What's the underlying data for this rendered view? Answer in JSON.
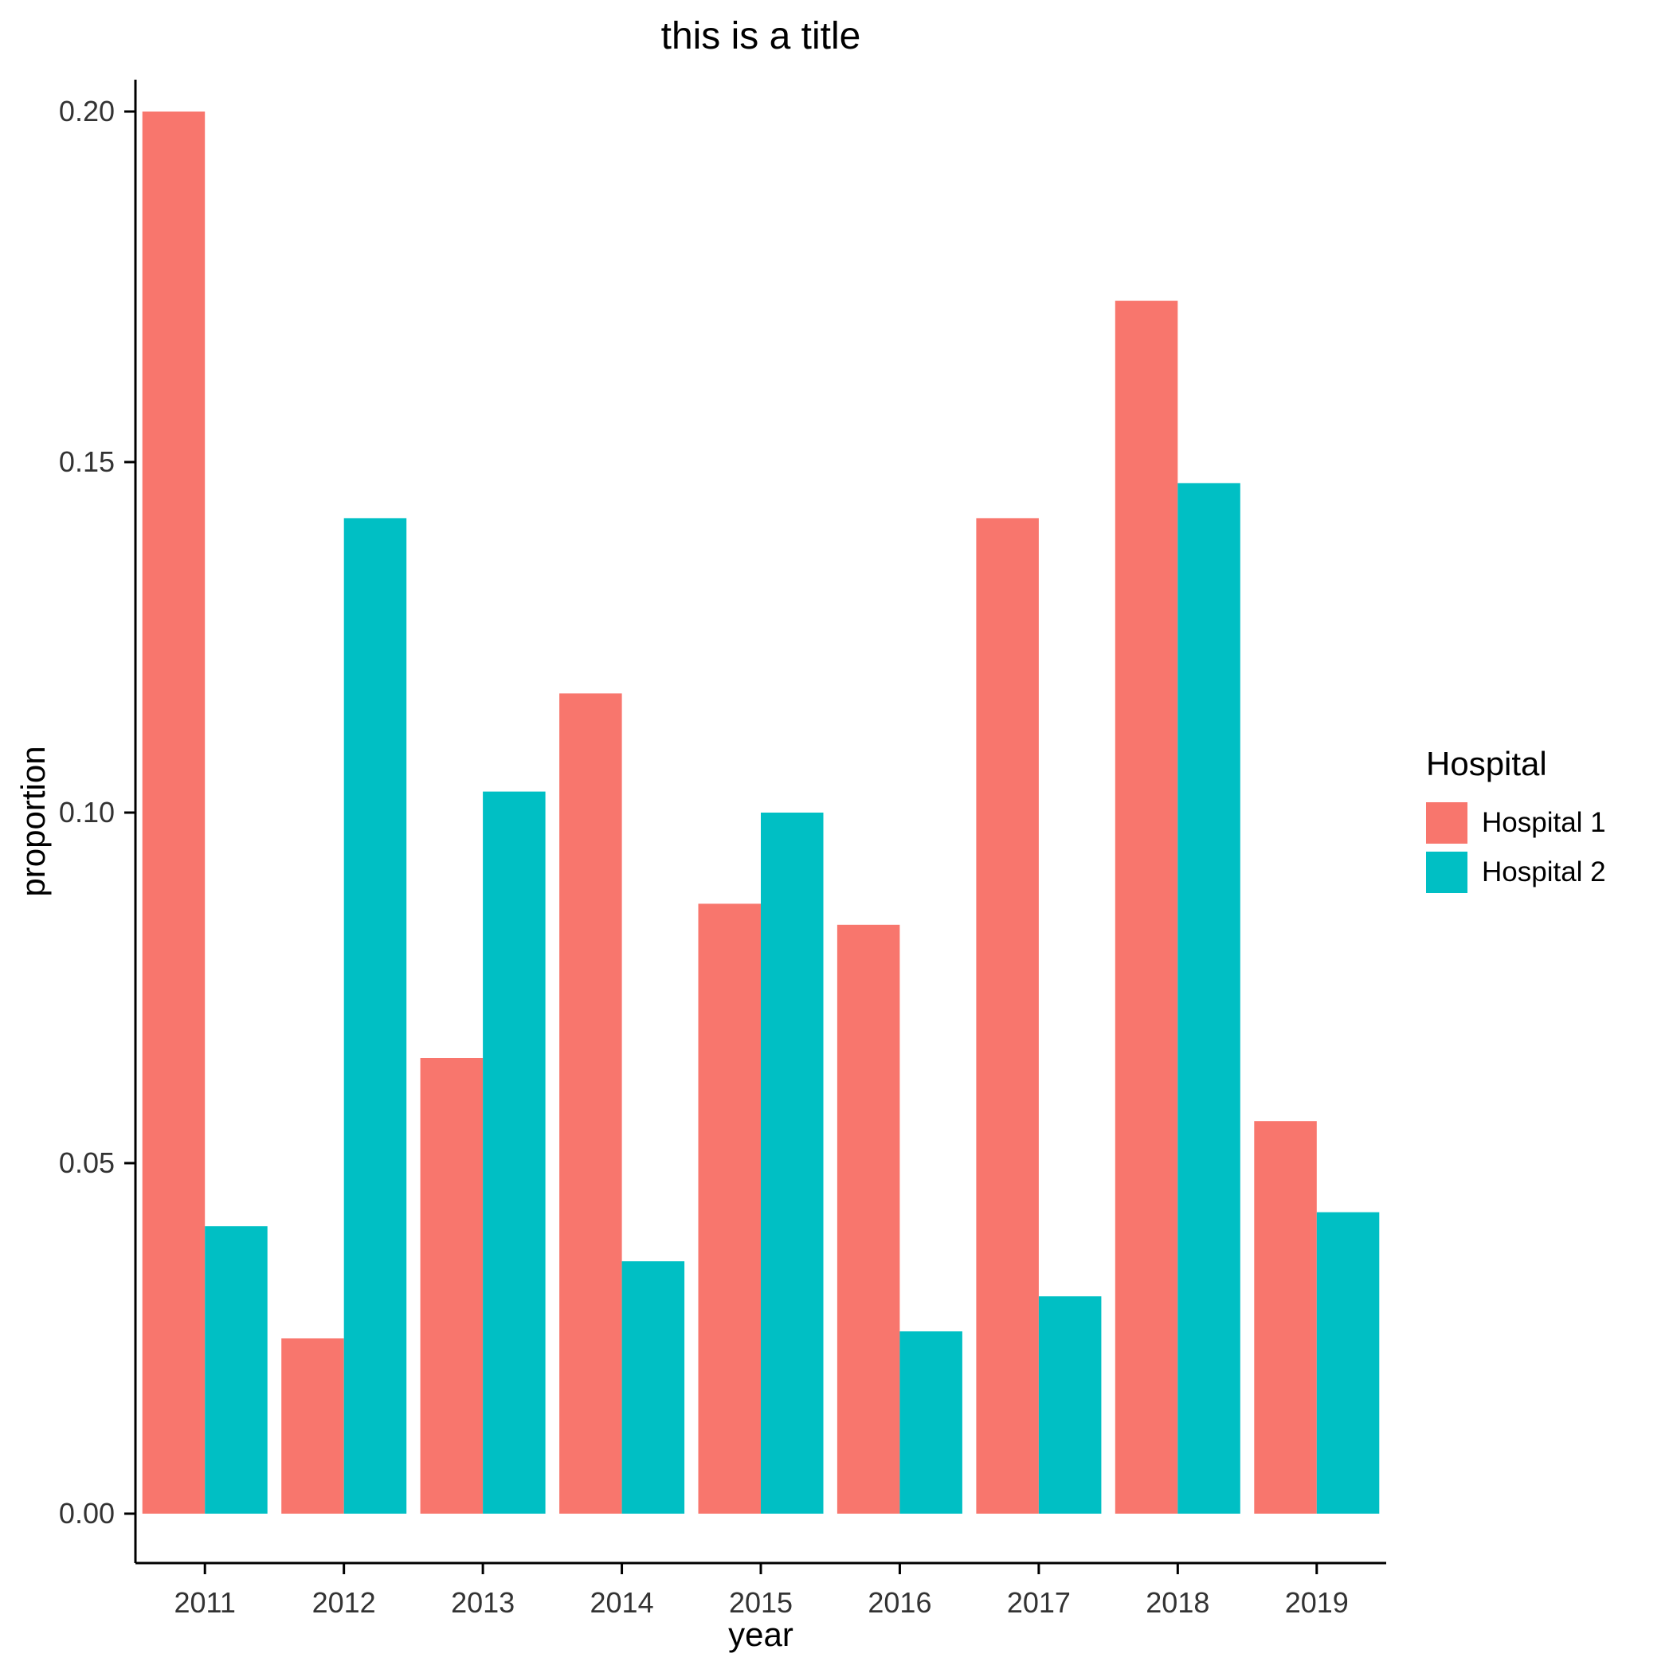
{
  "chart_data": {
    "type": "bar",
    "title": "this is a title",
    "xlabel": "year",
    "ylabel": "proportion",
    "categories": [
      "2011",
      "2012",
      "2013",
      "2014",
      "2015",
      "2016",
      "2017",
      "2018",
      "2019"
    ],
    "series": [
      {
        "name": "Hospital 1",
        "color": "#F8766D",
        "values": [
          0.2,
          0.025,
          0.065,
          0.117,
          0.087,
          0.084,
          0.142,
          0.173,
          0.056
        ]
      },
      {
        "name": "Hospital 2",
        "color": "#00BFC4",
        "values": [
          0.041,
          0.142,
          0.103,
          0.036,
          0.1,
          0.026,
          0.031,
          0.147,
          0.043
        ]
      }
    ],
    "ylim": [
      0,
      0.21
    ],
    "yticks": [
      0,
      0.05,
      0.1,
      0.15,
      0.2
    ],
    "ytick_labels": [
      "0.00",
      "0.05",
      "0.10",
      "0.15",
      "0.20"
    ],
    "legend": {
      "title": "Hospital",
      "position": "right"
    },
    "grid": false,
    "bar_style": "dodged",
    "axis_color": "#000000",
    "tick_label_color": "#333333"
  }
}
